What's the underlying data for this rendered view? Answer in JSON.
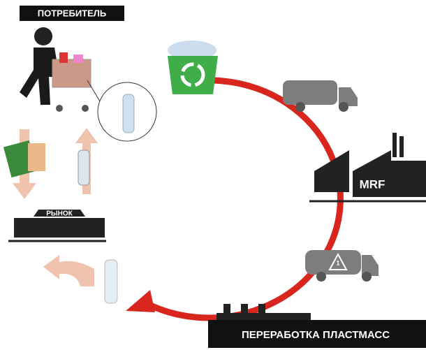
{
  "nodes": [
    {
      "label": "ПОТРЕБИТЕЛЬ"
    },
    {
      "label": "РЫНОК"
    },
    {
      "label": "MRF"
    },
    {
      "label": "1"
    },
    {
      "label": "ПЕРЕРАБОТКА ПЛАСТМАСС"
    }
  ]
}
